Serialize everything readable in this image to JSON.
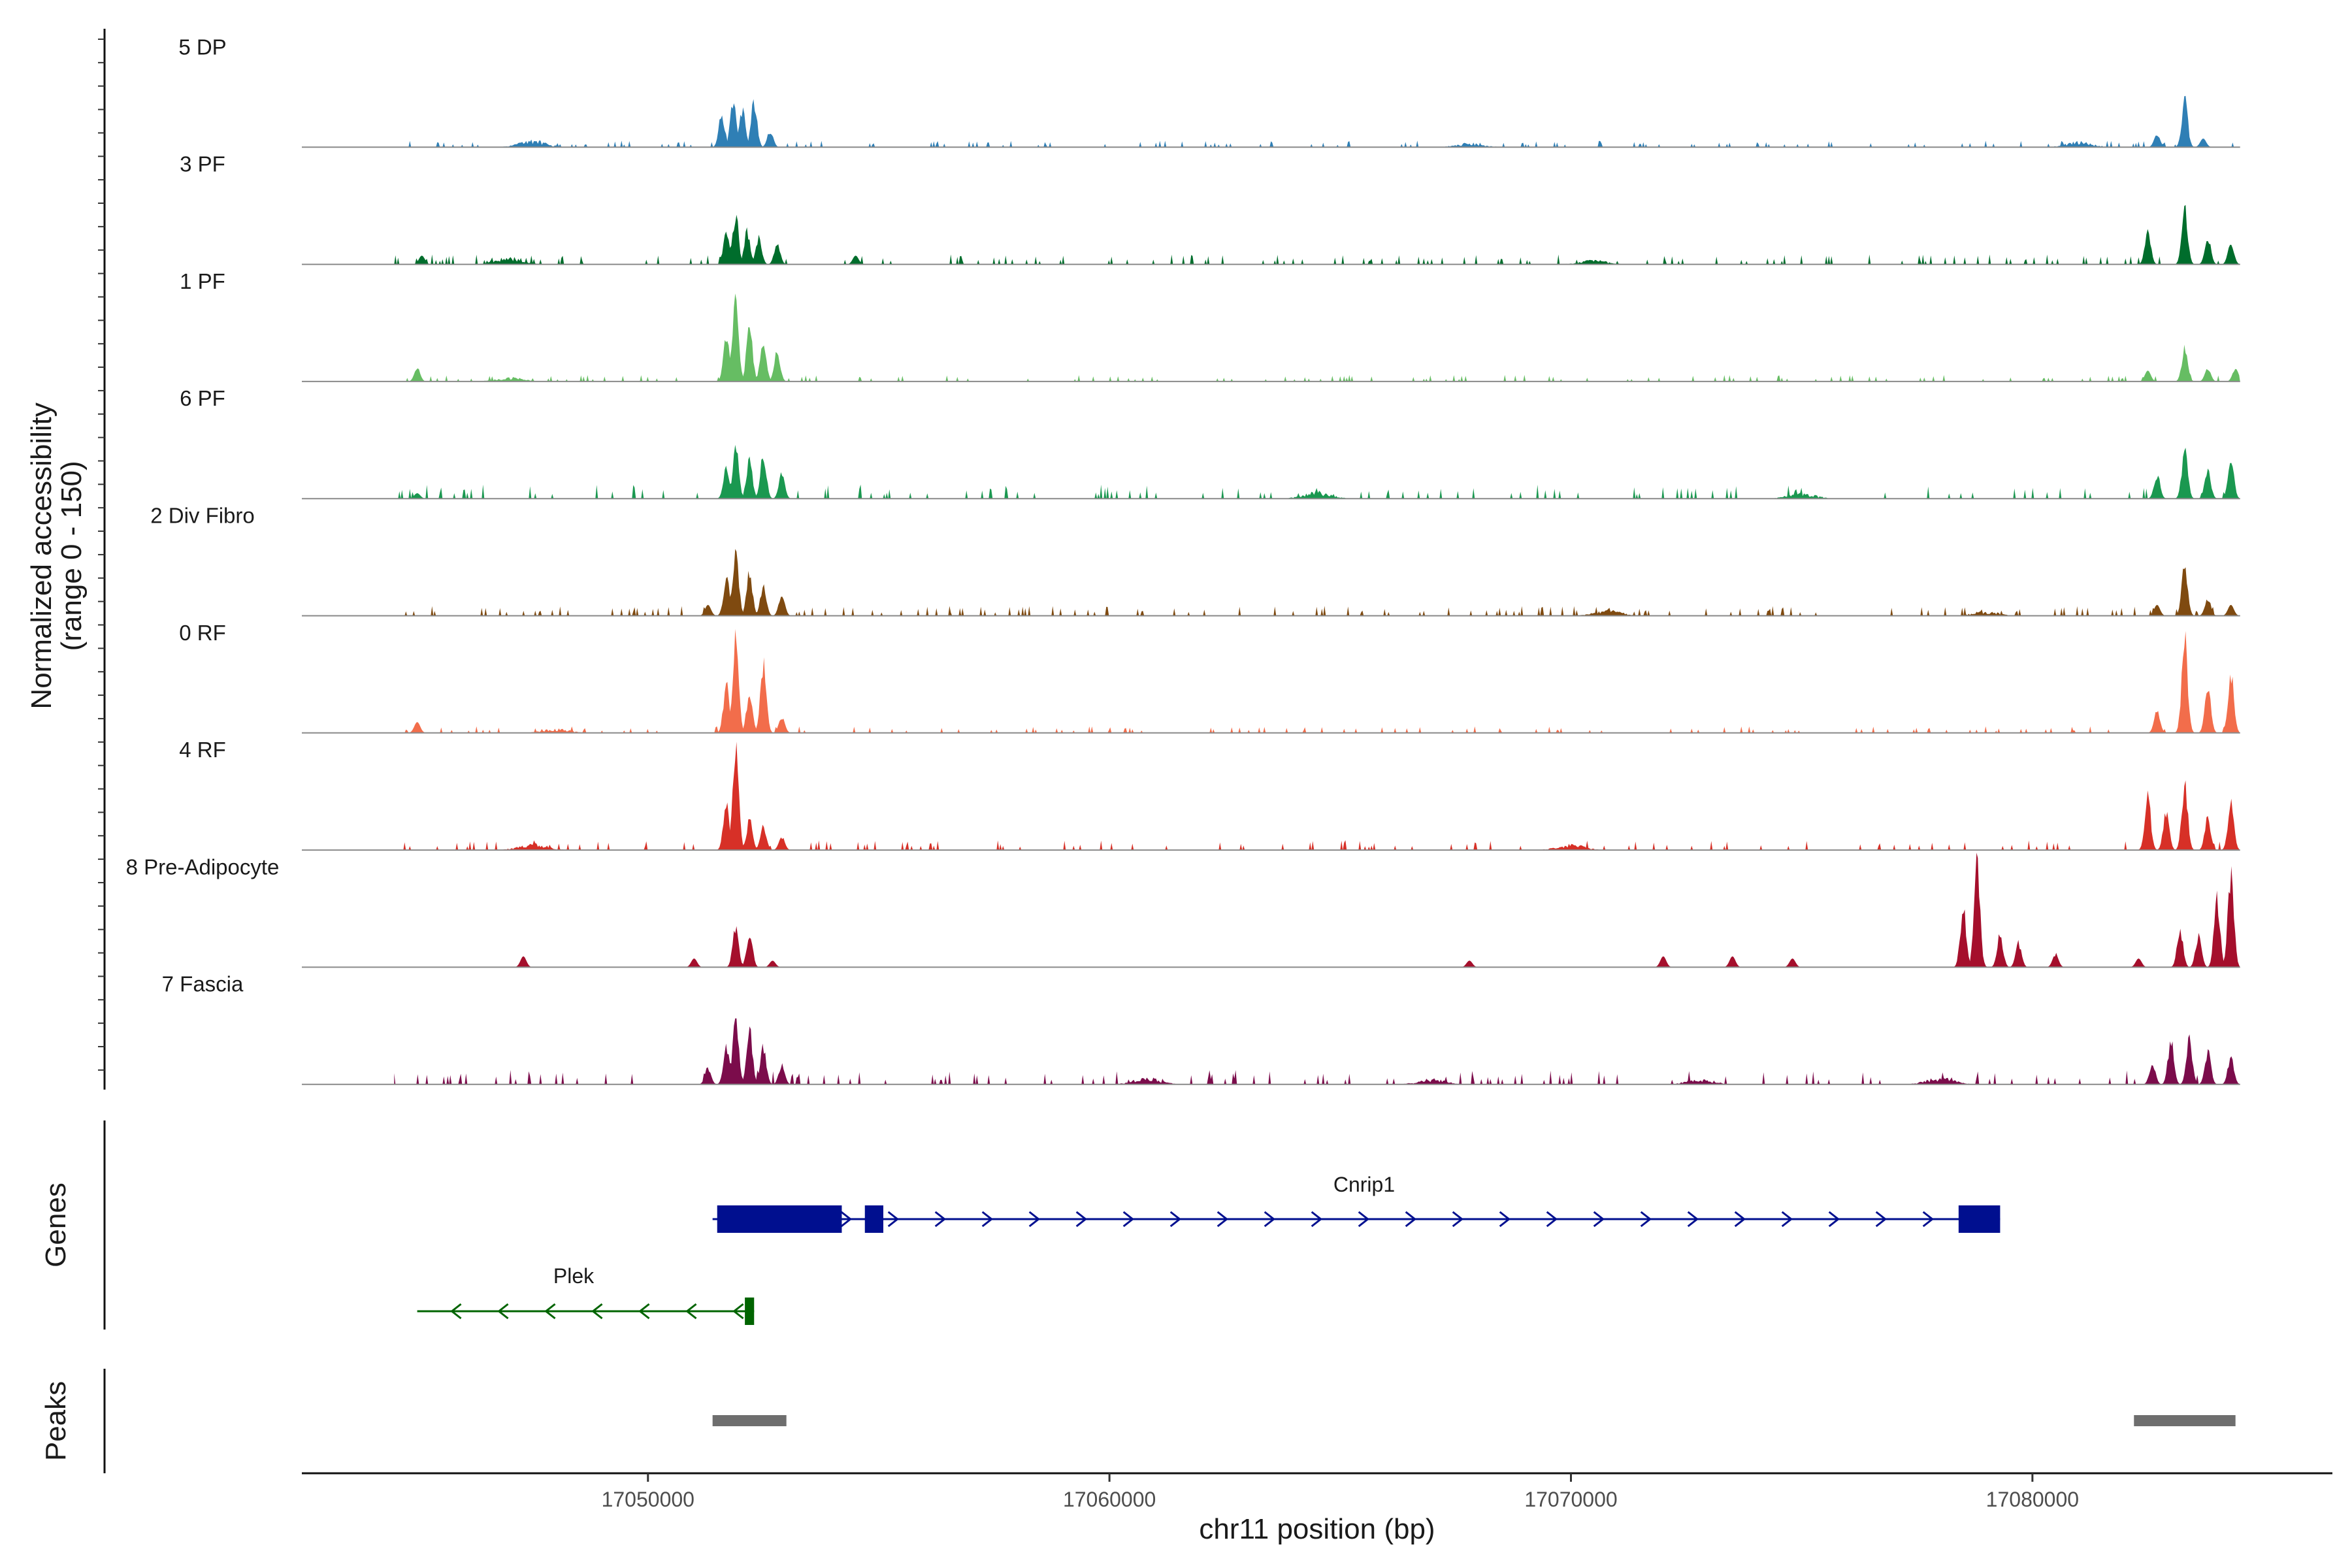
{
  "chart_data": {
    "type": "area",
    "title": "",
    "region": "chr11",
    "xlabel": "chr11 position (bp)",
    "ylabel": "Normalized accessibility",
    "ylabel_range": "(range 0 - 150)",
    "xlim": [
      17042500,
      17086500
    ],
    "ylim": [
      0,
      150
    ],
    "xticks": [
      17050000,
      17060000,
      17070000,
      17080000
    ],
    "xtick_labels": [
      "17050000",
      "17060000",
      "17070000",
      "17080000"
    ],
    "signal_extent": [
      17044500,
      17084500
    ],
    "tracks": [
      {
        "name": "5 DP",
        "color": "#2f7fb5",
        "peaks": [
          [
            17051600,
            0.3
          ],
          [
            17051850,
            0.45
          ],
          [
            17052050,
            0.35
          ],
          [
            17052300,
            0.42
          ],
          [
            17052650,
            0.15
          ],
          [
            17082700,
            0.12
          ],
          [
            17083300,
            0.43
          ],
          [
            17083700,
            0.08
          ]
        ],
        "noise": [
          [
            17047500,
            0.05
          ],
          [
            17067800,
            0.03
          ],
          [
            17081000,
            0.04
          ]
        ],
        "base": 0.02,
        "seed": 3
      },
      {
        "name": "3 PF",
        "color": "#006d2c",
        "peaks": [
          [
            17045100,
            0.08
          ],
          [
            17051700,
            0.28
          ],
          [
            17051900,
            0.46
          ],
          [
            17052150,
            0.3
          ],
          [
            17052400,
            0.25
          ],
          [
            17052800,
            0.2
          ],
          [
            17054500,
            0.08
          ],
          [
            17082500,
            0.3
          ],
          [
            17083300,
            0.52
          ],
          [
            17083800,
            0.25
          ],
          [
            17084300,
            0.2
          ]
        ],
        "noise": [
          [
            17047000,
            0.05
          ],
          [
            17070500,
            0.03
          ]
        ],
        "base": 0.03,
        "seed": 7
      },
      {
        "name": "1 PF",
        "color": "#66bd63",
        "peaks": [
          [
            17045000,
            0.12
          ],
          [
            17051700,
            0.4
          ],
          [
            17051900,
            0.8
          ],
          [
            17052200,
            0.52
          ],
          [
            17052500,
            0.4
          ],
          [
            17052800,
            0.28
          ],
          [
            17082500,
            0.1
          ],
          [
            17083300,
            0.3
          ],
          [
            17083800,
            0.12
          ],
          [
            17084400,
            0.12
          ]
        ],
        "noise": [
          [
            17047000,
            0.03
          ]
        ],
        "base": 0.02,
        "seed": 11
      },
      {
        "name": "6 PF",
        "color": "#1a9850",
        "peaks": [
          [
            17045000,
            0.05
          ],
          [
            17051700,
            0.28
          ],
          [
            17051900,
            0.48
          ],
          [
            17052200,
            0.35
          ],
          [
            17052500,
            0.4
          ],
          [
            17052900,
            0.22
          ],
          [
            17082700,
            0.22
          ],
          [
            17083300,
            0.45
          ],
          [
            17083800,
            0.28
          ],
          [
            17084300,
            0.35
          ]
        ],
        "noise": [
          [
            17064500,
            0.05
          ],
          [
            17075000,
            0.04
          ]
        ],
        "base": 0.04,
        "seed": 13
      },
      {
        "name": "2 Div Fibro",
        "color": "#7f4a10",
        "peaks": [
          [
            17051300,
            0.1
          ],
          [
            17051700,
            0.35
          ],
          [
            17051900,
            0.6
          ],
          [
            17052200,
            0.4
          ],
          [
            17052500,
            0.28
          ],
          [
            17052900,
            0.2
          ],
          [
            17082700,
            0.1
          ],
          [
            17083300,
            0.45
          ],
          [
            17083800,
            0.15
          ],
          [
            17084300,
            0.1
          ]
        ],
        "noise": [
          [
            17070800,
            0.04
          ],
          [
            17079000,
            0.03
          ]
        ],
        "base": 0.03,
        "seed": 17
      },
      {
        "name": "0 RF",
        "color": "#f26d4b",
        "peaks": [
          [
            17045000,
            0.1
          ],
          [
            17051700,
            0.45
          ],
          [
            17051900,
            0.9
          ],
          [
            17052200,
            0.38
          ],
          [
            17052500,
            0.65
          ],
          [
            17052900,
            0.15
          ],
          [
            17082700,
            0.2
          ],
          [
            17083300,
            0.85
          ],
          [
            17083800,
            0.42
          ],
          [
            17084300,
            0.55
          ]
        ],
        "noise": [
          [
            17048000,
            0.03
          ]
        ],
        "base": 0.02,
        "seed": 19
      },
      {
        "name": "4 RF",
        "color": "#d73027",
        "peaks": [
          [
            17051700,
            0.45
          ],
          [
            17051900,
            1.0
          ],
          [
            17052200,
            0.28
          ],
          [
            17052500,
            0.22
          ],
          [
            17052900,
            0.12
          ],
          [
            17082500,
            0.48
          ],
          [
            17082900,
            0.35
          ],
          [
            17083300,
            0.6
          ],
          [
            17083800,
            0.3
          ],
          [
            17084300,
            0.42
          ]
        ],
        "noise": [
          [
            17047500,
            0.05
          ],
          [
            17070000,
            0.04
          ]
        ],
        "base": 0.03,
        "seed": 23
      },
      {
        "name": "8 Pre-Adipocyte",
        "color": "#a50f2c",
        "peaks": [
          [
            17047300,
            0.1
          ],
          [
            17051000,
            0.08
          ],
          [
            17051900,
            0.35
          ],
          [
            17052200,
            0.32
          ],
          [
            17052700,
            0.06
          ],
          [
            17067800,
            0.06
          ],
          [
            17072000,
            0.1
          ],
          [
            17073500,
            0.1
          ],
          [
            17074800,
            0.08
          ],
          [
            17078500,
            0.55
          ],
          [
            17078800,
            1.0
          ],
          [
            17079300,
            0.3
          ],
          [
            17079700,
            0.22
          ],
          [
            17080500,
            0.12
          ],
          [
            17082300,
            0.08
          ],
          [
            17083200,
            0.35
          ],
          [
            17083600,
            0.3
          ],
          [
            17084000,
            0.62
          ],
          [
            17084300,
            0.85
          ]
        ],
        "noise": [],
        "base": 0.0,
        "seed": 29,
        "sparse": true
      },
      {
        "name": "7 Fascia",
        "color": "#7b0c4b",
        "peaks": [
          [
            17051300,
            0.15
          ],
          [
            17051700,
            0.35
          ],
          [
            17051900,
            0.65
          ],
          [
            17052200,
            0.52
          ],
          [
            17052500,
            0.35
          ],
          [
            17052900,
            0.18
          ],
          [
            17082600,
            0.2
          ],
          [
            17083000,
            0.4
          ],
          [
            17083400,
            0.42
          ],
          [
            17083800,
            0.3
          ],
          [
            17084300,
            0.25
          ]
        ],
        "noise": [
          [
            17060800,
            0.05
          ],
          [
            17067000,
            0.04
          ],
          [
            17072800,
            0.04
          ],
          [
            17078000,
            0.05
          ]
        ],
        "base": 0.04,
        "seed": 31
      }
    ],
    "genes_label": "Genes",
    "genes": [
      {
        "name": "Cnrip1",
        "color": "#000f8f",
        "strand": "+",
        "start": 17051400,
        "end": 17079300,
        "exons": [
          [
            17051500,
            17054200
          ],
          [
            17054700,
            17055100
          ],
          [
            17078400,
            17079300
          ]
        ]
      },
      {
        "name": "Plek",
        "color": "#006400",
        "strand": "-",
        "start": 17045000,
        "end": 17052300,
        "exons": [
          [
            17052100,
            17052300
          ]
        ]
      }
    ],
    "peaks_label": "Peaks",
    "peak_regions": [
      [
        17051400,
        17053000
      ],
      [
        17082200,
        17084400
      ]
    ]
  }
}
